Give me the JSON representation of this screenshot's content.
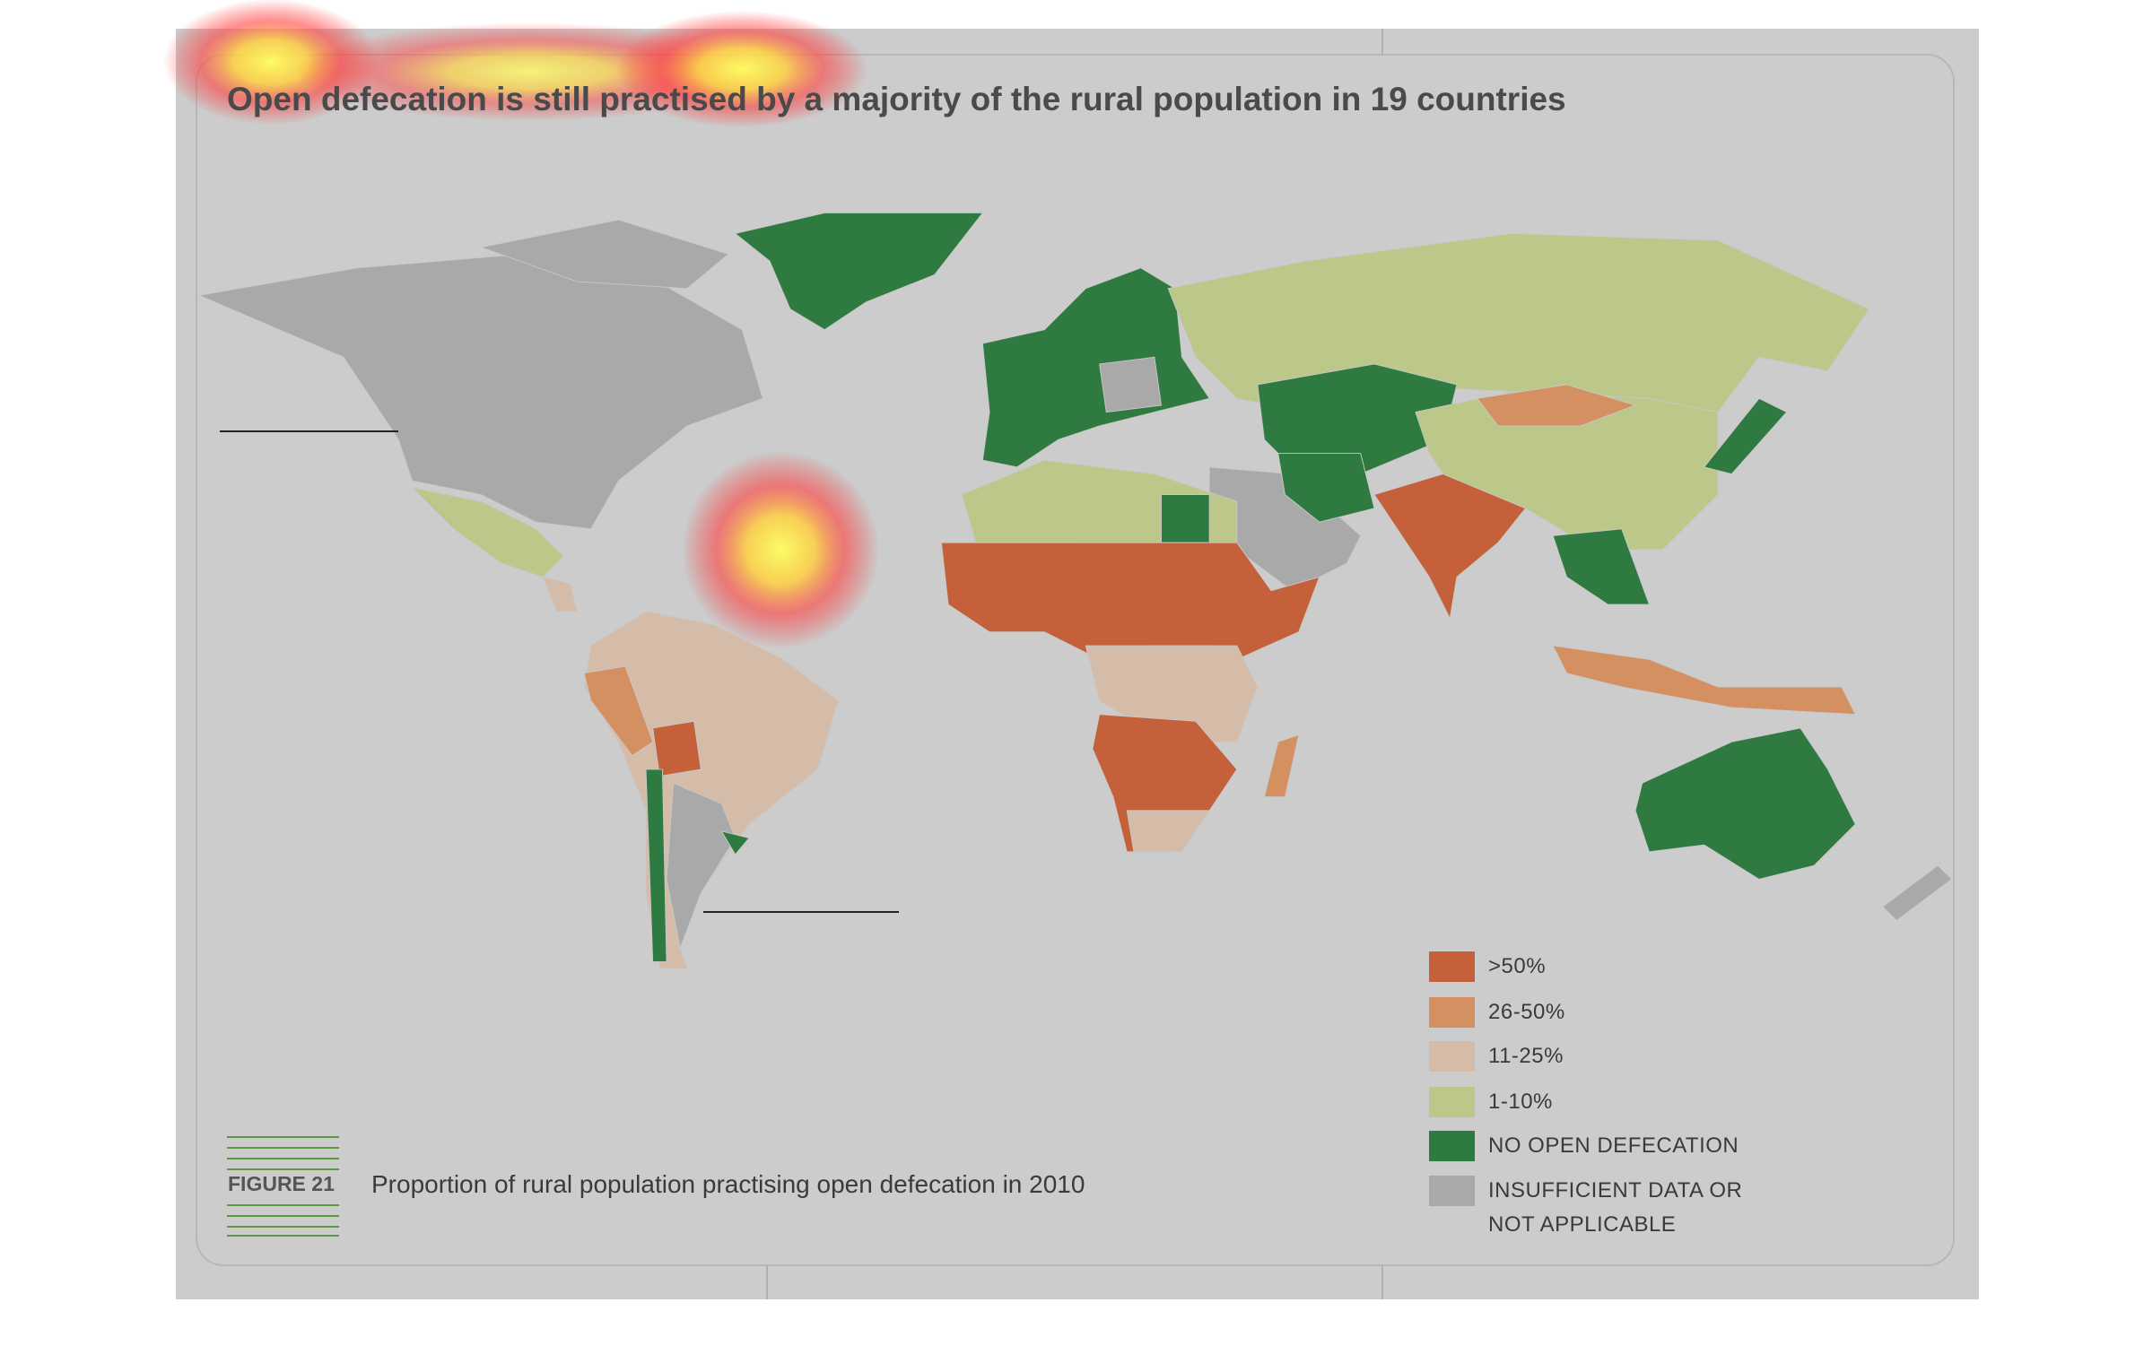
{
  "title": "Open defecation is still practised by a majority of the rural population in 19 countries",
  "legend": [
    {
      "label": ">50%",
      "color": "#c4603a"
    },
    {
      "label": "26-50%",
      "color": "#d49060"
    },
    {
      "label": "11-25%",
      "color": "#d4bca8"
    },
    {
      "label": "1-10%",
      "color": "#bcc88a"
    },
    {
      "label": "NO OPEN DEFECATION",
      "color": "#2e7a40"
    },
    {
      "label": "INSUFFICIENT DATA OR NOT APPLICABLE",
      "color": "#a9a9a9"
    }
  ],
  "figure": {
    "label": "FIGURE 21",
    "caption": "Proportion of rural population practising open defecation in 2010"
  }
}
